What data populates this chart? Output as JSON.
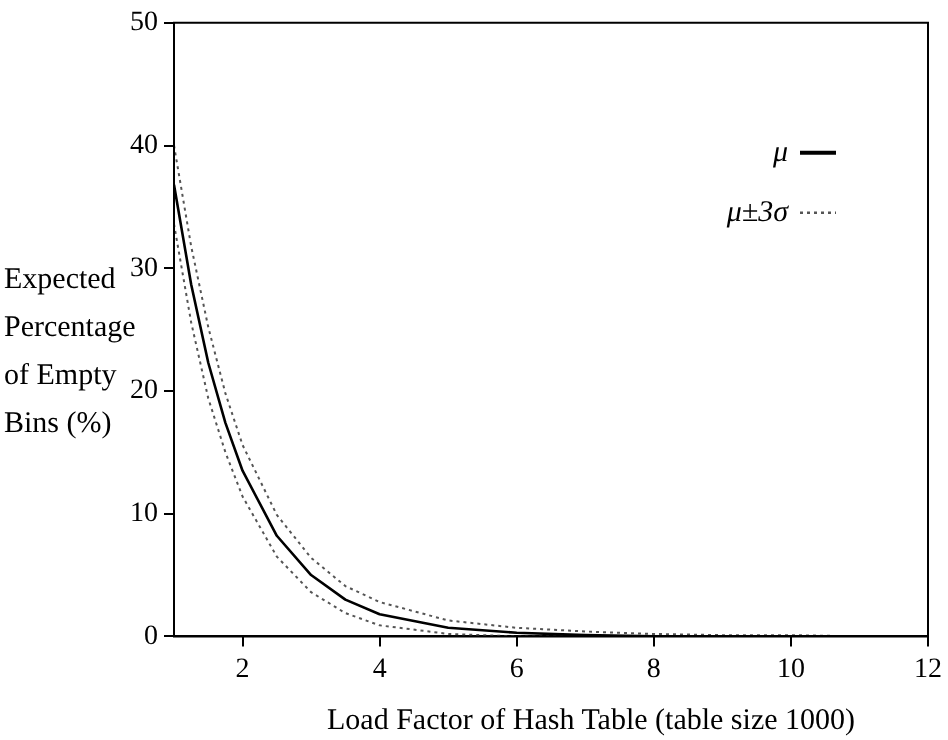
{
  "chart_data": {
    "type": "line",
    "xlabel": "Load Factor of Hash Table (table size 1000)",
    "ylabel": "Expected Percentage of Empty Bins (%)",
    "x": [
      1,
      1.25,
      1.5,
      1.75,
      2,
      2.5,
      3,
      3.5,
      4,
      5,
      6,
      7,
      8,
      9,
      10,
      11,
      12
    ],
    "series": [
      {
        "name": "μ",
        "color": "#000000",
        "line_style": "solid",
        "values": [
          36.8,
          28.7,
          22.3,
          17.4,
          13.5,
          8.2,
          5.0,
          3.0,
          1.8,
          0.7,
          0.3,
          0.1,
          0,
          0,
          0,
          0,
          0
        ]
      },
      {
        "name": "μ±3σ",
        "color": "#555555",
        "line_style": "dotted",
        "values": [
          40,
          31.8,
          25.2,
          19.8,
          15.6,
          9.9,
          6.4,
          4.1,
          2.8,
          1.3,
          0.7,
          0.4,
          0.2,
          0.1,
          0.1,
          0,
          0
        ]
      },
      {
        "color": "#555555",
        "line_style": "dotted",
        "values": [
          33.6,
          25.6,
          19.4,
          15.0,
          11.4,
          6.5,
          3.6,
          1.9,
          0.9,
          0.2,
          0,
          0,
          0,
          0,
          0,
          0,
          0
        ]
      }
    ],
    "xlim": [
      1,
      12
    ],
    "xticks": [
      2,
      4,
      6,
      8,
      10,
      12
    ],
    "ylim": [
      0,
      50
    ],
    "yticks": [
      0,
      10,
      20,
      30,
      40,
      50
    ],
    "grid": false,
    "legend": "top right",
    "marker": "none"
  }
}
